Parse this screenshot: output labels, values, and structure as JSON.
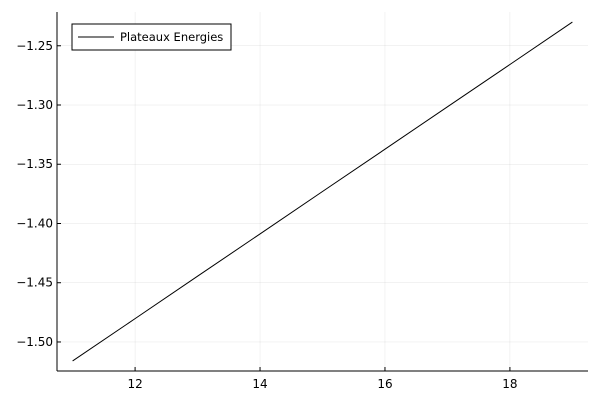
{
  "chart_data": {
    "type": "line",
    "title": "",
    "xlabel": "",
    "ylabel": "",
    "xlim": [
      10.75,
      19.25
    ],
    "ylim": [
      -1.5245,
      -1.2215
    ],
    "grid": true,
    "legend": "top-left",
    "x_ticks": [
      12,
      14,
      16,
      18
    ],
    "x_tick_labels": [
      "12",
      "14",
      "16",
      "18"
    ],
    "y_ticks": [
      -1.5,
      -1.45,
      -1.4,
      -1.35,
      -1.3,
      -1.25
    ],
    "y_tick_labels": [
      "−1.50",
      "−1.45",
      "−1.40",
      "−1.35",
      "−1.30",
      "−1.25"
    ],
    "series": [
      {
        "name": "Plateaux Energies",
        "color": "#000000",
        "x": [
          11,
          12,
          13,
          14,
          15,
          16,
          17,
          18,
          19
        ],
        "y": [
          -1.516,
          -1.4803,
          -1.4445,
          -1.4088,
          -1.373,
          -1.3373,
          -1.3015,
          -1.2658,
          -1.23
        ]
      }
    ]
  }
}
